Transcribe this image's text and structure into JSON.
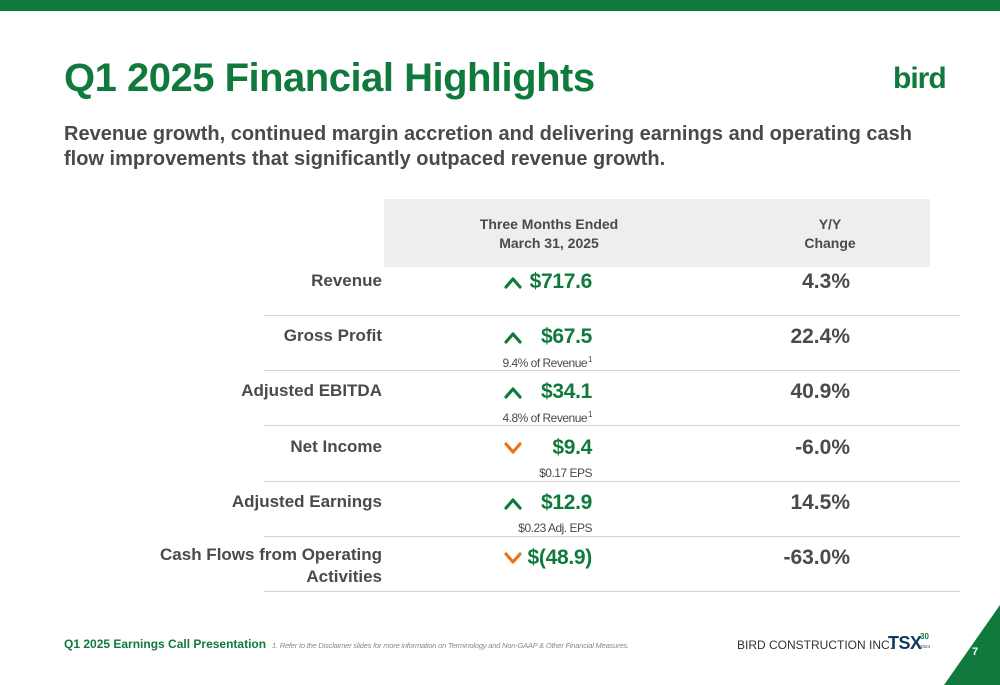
{
  "colors": {
    "brand_green": "#0f7a3c",
    "arrow_up": "#0f7a3c",
    "arrow_down": "#e8731c",
    "text_gray": "#4a4a4a"
  },
  "title": "Q1 2025 Financial Highlights",
  "logo_text": "bird",
  "subtitle": "Revenue growth, continued margin accretion and delivering earnings and operating cash flow improvements that significantly outpaced revenue growth.",
  "table": {
    "headers": {
      "col1_line1": "Three Months Ended",
      "col1_line2": "March 31, 2025",
      "col2_line1": "Y/Y",
      "col2_line2": "Change"
    },
    "rows": [
      {
        "label": "Revenue",
        "direction": "up",
        "value": "$717.6",
        "note": "",
        "note_sup": "",
        "change": "4.3%"
      },
      {
        "label": "Gross Profit",
        "direction": "up",
        "value": "$67.5",
        "note": "9.4% of Revenue",
        "note_sup": "1",
        "change": "22.4%"
      },
      {
        "label": "Adjusted EBITDA",
        "direction": "up",
        "value": "$34.1",
        "note": "4.8% of Revenue",
        "note_sup": "1",
        "change": "40.9%"
      },
      {
        "label": "Net Income",
        "direction": "down",
        "value": "$9.4",
        "note": "$0.17 EPS",
        "note_sup": "",
        "change": "-6.0%"
      },
      {
        "label": "Adjusted Earnings",
        "direction": "up",
        "value": "$12.9",
        "note": "$0.23 Adj. EPS",
        "note_sup": "",
        "change": "14.5%"
      },
      {
        "label": "Cash Flows from Operating Activities",
        "direction": "down",
        "value": "$(48.9)",
        "note": "",
        "note_sup": "",
        "change": "-63.0%"
      }
    ]
  },
  "footer": {
    "presentation": "Q1 2025 Earnings Call Presentation",
    "footnote": "1.     Refer to the Disclaimer slides for more information on Terminology and Non-GAAP & Other Financial Measures.",
    "company": "BIRD CONSTRUCTION INC.",
    "tsx_label": "TSX",
    "tsx_number": "30",
    "tsx_year": "2024",
    "page_number": "7"
  }
}
